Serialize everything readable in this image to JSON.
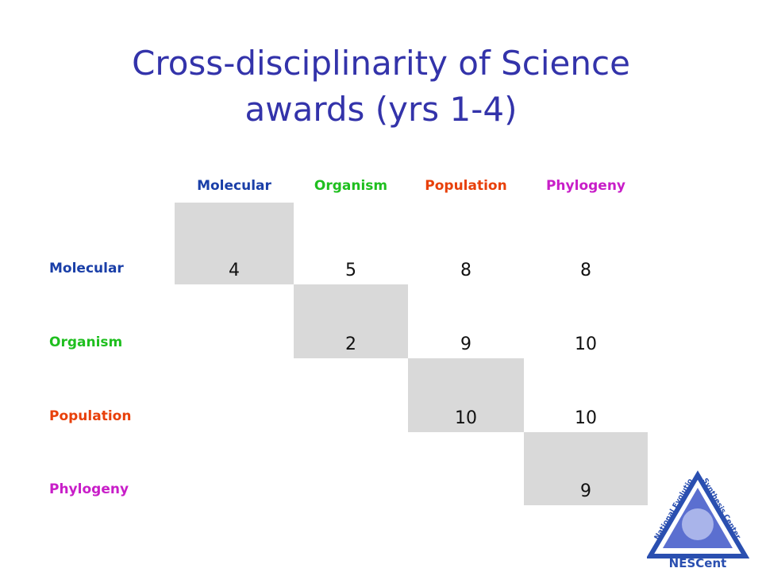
{
  "title": [
    "Cross-disciplinarity of Science",
    "awards (yrs 1-4)"
  ],
  "table": {
    "columns": [
      "Molecular",
      "Organism",
      "Population",
      "Phylogeny"
    ],
    "rows": [
      {
        "label": "Molecular",
        "cells": [
          4,
          5,
          8,
          8
        ]
      },
      {
        "label": "Organism",
        "cells": [
          null,
          2,
          9,
          10
        ]
      },
      {
        "label": "Population",
        "cells": [
          null,
          null,
          10,
          10
        ]
      },
      {
        "label": "Phylogeny",
        "cells": [
          null,
          null,
          null,
          9
        ]
      }
    ]
  },
  "logo": {
    "arc_left": "National Evolutionary",
    "arc_right": "Synthesis Center",
    "name": "NESCent"
  }
}
